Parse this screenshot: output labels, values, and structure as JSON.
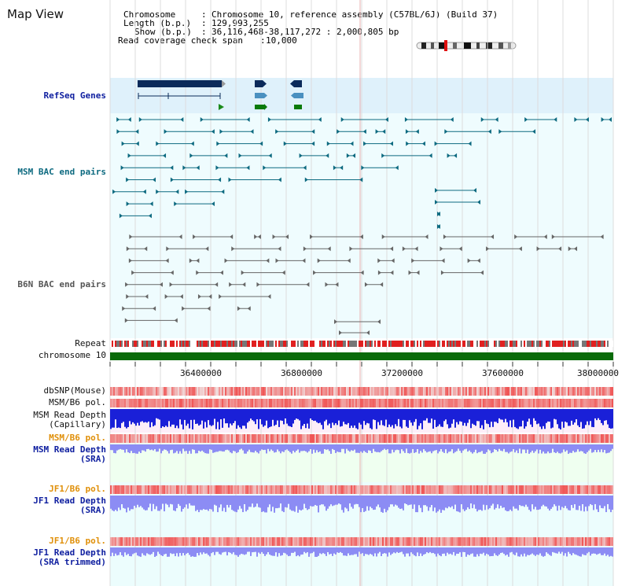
{
  "page": {
    "title": "Map View"
  },
  "info": {
    "chromosome_label": "Chromosome",
    "chromosome_value": "Chromosome 10, reference assembly (C57BL/6J) (Build 37)",
    "length_label": "Length (b.p.)",
    "length_value": "129,993,255",
    "show_label": "Show (b.p.)",
    "show_value": "36,116,468-38,117,272 : 2,000,805 bp",
    "coverage_label": "Read coverage check span",
    "coverage_value": "10,000"
  },
  "tracks": {
    "refseq": "RefSeq Genes",
    "msm_bac": "MSM BAC end pairs",
    "b6n_bac": "B6N BAC end pairs",
    "repeat": "Repeat",
    "chromosome": "chromosome 10",
    "dbsnp": "dbSNP(Mouse)",
    "msm_b6_pol_1": "MSM/B6 pol.",
    "msm_depth_cap_1": "MSM Read Depth",
    "msm_depth_cap_2": "(Capillary)",
    "msm_b6_pol_2": "MSM/B6 pol.",
    "msm_depth_sra_1": "MSM Read Depth",
    "msm_depth_sra_2": "(SRA)",
    "jf1_b6_pol_1": "JF1/B6 pol.",
    "jf1_depth_sra_1": "JF1 Read Depth",
    "jf1_depth_sra_2": "(SRA)",
    "jf1_b6_pol_2": "JF1/B6 pol.",
    "jf1_depth_trim_1": "JF1 Read Depth",
    "jf1_depth_trim_2": "(SRA trimmed)"
  },
  "axis": {
    "ticks": [
      "36400000",
      "36800000",
      "37200000",
      "37600000",
      "38000000"
    ]
  },
  "colors": {
    "refseq_bg": "#dff1fb",
    "bac_bg": "#effcfe",
    "msm_sra_bg": "#effff0",
    "jf1_bg": "#ecfdfd",
    "refseq_dark": "#0b2a5a",
    "teal": "#0d6a80",
    "gray": "#666666",
    "chrom": "#0a6a0a",
    "depth_dark": "#1a20d8",
    "depth_light": "#8c8cf4",
    "pol": "#f04a4a"
  }
}
